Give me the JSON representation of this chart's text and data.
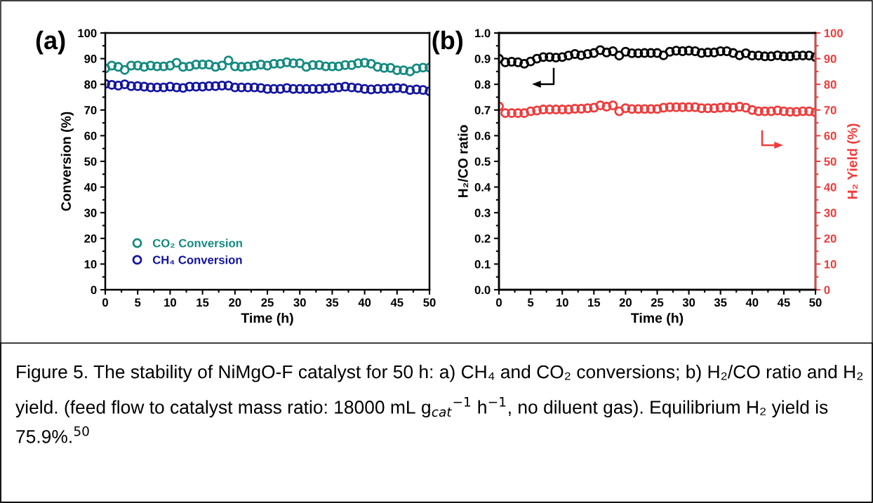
{
  "chart_data": [
    {
      "type": "scatter",
      "annotations": [
        "(a)",
        "Figure 5. The stability of NiMgO-F catalyst for 50 h: a) CH₄ and CO₂ conversions; b) H₂/CO ratio and H₂ yield. (feed flow to catalyst mass ratio: 18000 mL g$_{cat}$$^{−1}$ h$^{−1}$, no diluent gas). Equilibrium H₂ yield is 75.9%.$^{50}$"
      ],
      "xlabel": "Time (h)",
      "ylabel": "Conversion (%)",
      "x": [
        0,
        1,
        2,
        3,
        4,
        5,
        6,
        7,
        8,
        9,
        10,
        11,
        12,
        13,
        14,
        15,
        16,
        17,
        18,
        19,
        20,
        21,
        22,
        23,
        24,
        25,
        26,
        27,
        28,
        29,
        30,
        31,
        32,
        33,
        34,
        35,
        36,
        37,
        38,
        39,
        40,
        41,
        42,
        43,
        44,
        45,
        46,
        47,
        48,
        49,
        50
      ],
      "series": [
        {
          "name": "CO₂ Conversion",
          "color": "#138a80",
          "values": [
            86.2,
            87.3,
            86.8,
            85.6,
            87.3,
            87.3,
            86.8,
            87.3,
            87.0,
            87.0,
            87.3,
            88.4,
            86.8,
            87.0,
            87.7,
            87.7,
            87.7,
            86.8,
            87.3,
            89.3,
            87.0,
            86.8,
            87.0,
            87.3,
            87.7,
            87.3,
            88.0,
            88.0,
            88.6,
            88.2,
            88.2,
            86.8,
            87.5,
            87.5,
            87.0,
            87.0,
            87.0,
            87.5,
            87.5,
            88.2,
            88.4,
            88.0,
            86.8,
            86.4,
            86.4,
            85.5,
            85.5,
            85.0,
            86.2,
            86.5,
            86.5
          ]
        },
        {
          "name": "CH₄ Conversion",
          "color": "#1414a0",
          "values": [
            80.2,
            79.8,
            79.5,
            80.0,
            79.3,
            79.3,
            79.1,
            78.8,
            78.8,
            78.8,
            79.1,
            78.8,
            78.6,
            79.1,
            79.1,
            79.1,
            79.3,
            79.3,
            79.5,
            79.5,
            78.8,
            78.8,
            78.8,
            78.8,
            78.6,
            78.2,
            78.2,
            78.2,
            78.6,
            78.2,
            78.2,
            78.2,
            78.2,
            78.2,
            78.4,
            78.6,
            78.8,
            79.1,
            78.8,
            78.6,
            78.2,
            78.0,
            78.2,
            78.2,
            78.4,
            78.6,
            78.4,
            77.8,
            78.0,
            77.8,
            77.3
          ]
        }
      ],
      "xlim": [
        0,
        50
      ],
      "xticks": [
        0,
        5,
        10,
        15,
        20,
        25,
        30,
        35,
        40,
        45,
        50
      ],
      "ylim": [
        0,
        100
      ],
      "yticks": [
        0,
        10,
        20,
        30,
        40,
        50,
        60,
        70,
        80,
        90,
        100
      ],
      "marker": "circle",
      "legend": "bottom left",
      "grid": false
    },
    {
      "type": "scatter",
      "annotations": [
        "(b)"
      ],
      "xlabel": "Time (h)",
      "ylabel": "H₂/CO ratio",
      "y2label": "H₂ Yield (%)",
      "x": [
        0,
        1,
        2,
        3,
        4,
        5,
        6,
        7,
        8,
        9,
        10,
        11,
        12,
        13,
        14,
        15,
        16,
        17,
        18,
        19,
        20,
        21,
        22,
        23,
        24,
        25,
        26,
        27,
        28,
        29,
        30,
        31,
        32,
        33,
        34,
        35,
        36,
        37,
        38,
        39,
        40,
        41,
        42,
        43,
        44,
        45,
        46,
        47,
        48,
        49,
        50
      ],
      "series": [
        {
          "color": "#000000",
          "values": [
            0.9,
            0.886,
            0.888,
            0.886,
            0.88,
            0.889,
            0.9,
            0.906,
            0.906,
            0.904,
            0.906,
            0.912,
            0.918,
            0.913,
            0.918,
            0.922,
            0.933,
            0.924,
            0.929,
            0.912,
            0.927,
            0.921,
            0.921,
            0.922,
            0.922,
            0.922,
            0.913,
            0.927,
            0.931,
            0.929,
            0.931,
            0.929,
            0.922,
            0.924,
            0.924,
            0.929,
            0.929,
            0.922,
            0.913,
            0.921,
            0.912,
            0.912,
            0.909,
            0.909,
            0.913,
            0.909,
            0.909,
            0.912,
            0.912,
            0.912,
            0.906
          ]
        },
        {
          "color": "#f03c3c",
          "axis": "y2",
          "values": [
            71.4,
            68.8,
            68.8,
            68.8,
            68.8,
            69.5,
            69.8,
            70.2,
            70.2,
            70.2,
            70.2,
            70.2,
            70.5,
            70.5,
            70.7,
            70.9,
            71.8,
            71.3,
            71.8,
            69.5,
            70.7,
            70.4,
            70.4,
            70.4,
            70.4,
            70.4,
            70.9,
            71.1,
            71.1,
            71.1,
            71.1,
            71.1,
            70.7,
            70.7,
            70.7,
            70.9,
            71.1,
            70.9,
            71.3,
            70.9,
            70.0,
            69.5,
            69.5,
            69.5,
            69.8,
            69.5,
            69.3,
            69.3,
            69.5,
            69.5,
            69.1
          ]
        }
      ],
      "xlim": [
        0,
        50
      ],
      "xticks": [
        0,
        5,
        10,
        15,
        20,
        25,
        30,
        35,
        40,
        45,
        50
      ],
      "ylim": [
        0,
        1.0
      ],
      "yticks": [
        {
          "value": 0,
          "label": "0.0"
        },
        0.1,
        0.2,
        0.3,
        0.4,
        0.5,
        0.6,
        0.7,
        0.8,
        0.9,
        {
          "value": 1.0,
          "label": "1.0"
        }
      ],
      "y2lim": [
        0,
        100
      ],
      "y2ticks": [
        0,
        10,
        20,
        30,
        40,
        50,
        60,
        70,
        80,
        90,
        100
      ],
      "marker": "circle",
      "grid": false
    }
  ]
}
